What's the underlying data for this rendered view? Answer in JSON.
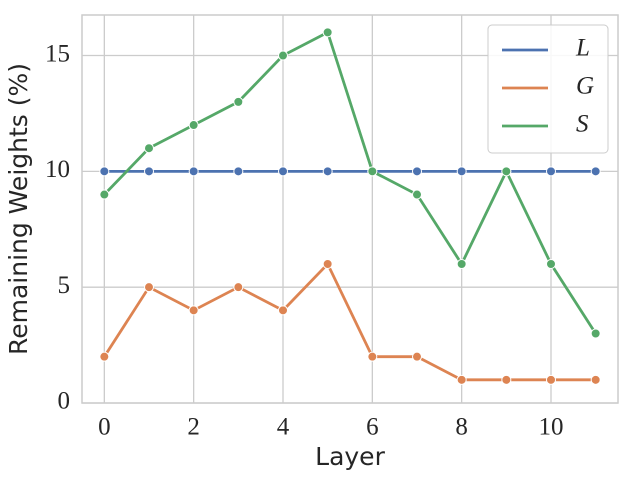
{
  "chart_data": {
    "type": "line",
    "x_label": "Layer",
    "y_label": "Remaining Weights (%)",
    "x": [
      0,
      1,
      2,
      3,
      4,
      5,
      6,
      7,
      8,
      9,
      10,
      11
    ],
    "series": [
      {
        "name": "L",
        "color": "#4c72b0",
        "values": [
          10,
          10,
          10,
          10,
          10,
          10,
          10,
          10,
          10,
          10,
          10,
          10
        ]
      },
      {
        "name": "G",
        "color": "#dd8452",
        "values": [
          2,
          5,
          4,
          5,
          4,
          6,
          2,
          2,
          1,
          1,
          1,
          1
        ]
      },
      {
        "name": "S",
        "color": "#55a868",
        "values": [
          9,
          11,
          12,
          13,
          15,
          16,
          10,
          9,
          6,
          10,
          6,
          3
        ]
      }
    ],
    "xlim": [
      -0.5,
      11.5
    ],
    "xticks": [
      0,
      2,
      4,
      6,
      8,
      10
    ],
    "ylim": [
      0,
      16.75
    ],
    "yticks": [
      0,
      5,
      10,
      15
    ],
    "grid": true,
    "legend": "upper right"
  }
}
